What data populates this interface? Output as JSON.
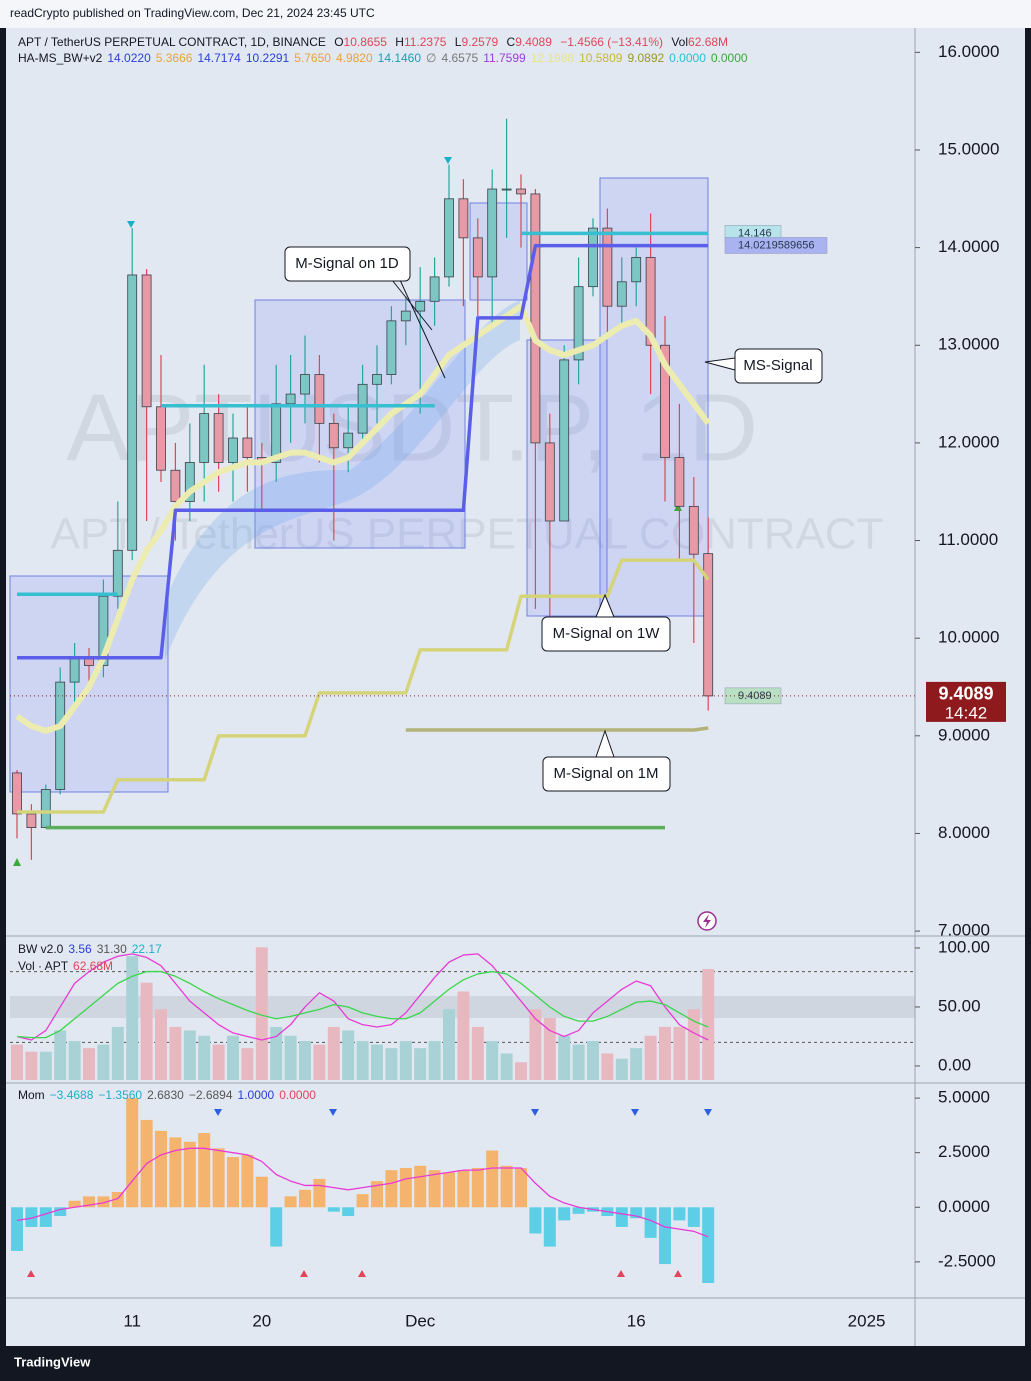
{
  "header": {
    "title": "readCrypto published on TradingView.com, Dec 21, 2024 23:45 UTC"
  },
  "footer": {
    "brand": "TradingView"
  },
  "watermark": {
    "symbol": "APTUSDT.P, 1D",
    "name": "APT / TetherUS PERPETUAL CONTRACT"
  },
  "chart_data": [
    {
      "type": "candlestick",
      "categories": [
        null,
        null,
        null,
        null,
        null,
        null,
        null,
        null,
        "11",
        null,
        null,
        null,
        null,
        null,
        null,
        null,
        null,
        "20",
        null,
        null,
        null,
        null,
        null,
        null,
        null,
        null,
        null,
        null,
        "Dec",
        null,
        null,
        null,
        null,
        null,
        null,
        null,
        null,
        null,
        null,
        null,
        null,
        null,
        null,
        "16",
        null,
        null,
        null,
        null,
        null
      ],
      "next_year_label": "2025",
      "open": [
        8.62,
        8.2,
        8.06,
        8.45,
        9.55,
        9.8,
        9.72,
        10.43,
        10.9,
        13.72,
        12.37,
        11.72,
        11.4,
        11.8,
        12.3,
        11.8,
        12.05,
        11.85,
        11.8,
        12.4,
        12.5,
        12.7,
        12.2,
        11.95,
        12.1,
        12.6,
        12.7,
        13.25,
        13.35,
        13.45,
        13.7,
        14.5,
        14.1,
        13.7,
        14.6,
        14.6,
        14.55,
        12.0,
        11.2,
        12.85,
        13.6,
        14.2,
        13.4,
        13.65,
        13.9,
        13.0,
        11.85,
        11.35,
        10.8655
      ],
      "high": [
        8.65,
        8.3,
        8.5,
        9.7,
        9.95,
        9.9,
        10.6,
        11.4,
        14.2,
        13.78,
        12.9,
        12.0,
        12.2,
        12.8,
        12.5,
        12.3,
        12.4,
        12.0,
        12.8,
        12.9,
        13.1,
        12.9,
        12.3,
        12.4,
        12.8,
        13.0,
        13.4,
        13.5,
        13.8,
        13.9,
        14.85,
        14.7,
        14.3,
        14.8,
        15.32,
        14.75,
        14.6,
        12.3,
        13.0,
        13.9,
        14.3,
        14.4,
        13.9,
        14.0,
        14.35,
        13.3,
        12.4,
        11.65,
        11.2375
      ],
      "low": [
        7.95,
        7.73,
        8.05,
        8.4,
        9.3,
        9.5,
        9.6,
        10.3,
        10.8,
        11.2,
        11.6,
        11.0,
        11.2,
        11.4,
        11.5,
        11.4,
        11.5,
        11.3,
        11.6,
        12.0,
        12.2,
        11.8,
        11.0,
        11.7,
        12.0,
        12.2,
        12.6,
        13.0,
        12.3,
        13.2,
        13.6,
        13.4,
        13.3,
        13.2,
        14.1,
        14.0,
        10.3,
        10.1,
        11.2,
        12.6,
        13.5,
        13.1,
        13.2,
        13.4,
        12.5,
        11.4,
        10.8,
        9.95,
        9.2579
      ],
      "close": [
        8.2,
        8.06,
        8.45,
        9.55,
        9.8,
        9.72,
        10.43,
        10.9,
        13.72,
        12.37,
        11.72,
        11.4,
        11.8,
        12.3,
        11.8,
        12.05,
        11.85,
        11.8,
        12.4,
        12.5,
        12.7,
        12.2,
        11.95,
        12.1,
        12.6,
        12.7,
        13.25,
        13.35,
        13.45,
        13.7,
        14.5,
        14.1,
        13.7,
        14.6,
        14.6,
        14.55,
        12.0,
        11.2,
        12.85,
        13.6,
        14.2,
        13.4,
        13.65,
        13.9,
        13.0,
        11.85,
        11.35,
        10.86,
        9.4089
      ],
      "up_color": "#7cc6c4",
      "down_color": "#e79aa5",
      "up_wick": "#26a69a",
      "down_wick": "#e0455a",
      "series": [
        {
          "name": "MS-Signal",
          "color": "#ecebb0",
          "values": [
            9.2,
            9.1,
            9.05,
            9.1,
            9.3,
            9.5,
            9.8,
            10.2,
            10.6,
            10.9,
            11.1,
            11.35,
            11.5,
            11.6,
            11.7,
            11.75,
            11.8,
            11.8,
            11.85,
            11.9,
            11.9,
            11.85,
            11.8,
            11.85,
            12.0,
            12.15,
            12.3,
            12.4,
            12.5,
            12.7,
            12.9,
            13.0,
            13.1,
            13.2,
            13.3,
            13.4,
            13.05,
            12.95,
            12.9,
            12.95,
            13.0,
            13.1,
            13.2,
            13.25,
            13.1,
            12.8,
            12.6,
            12.4,
            12.2
          ]
        },
        {
          "name": "M-Signal on 1D",
          "color": "#5b5ee8",
          "values": [
            9.8,
            9.8,
            9.8,
            9.8,
            9.8,
            9.8,
            9.8,
            9.8,
            9.8,
            9.8,
            9.8,
            11.31,
            11.31,
            11.31,
            11.31,
            11.31,
            11.31,
            11.31,
            11.31,
            11.31,
            11.31,
            11.31,
            11.31,
            11.31,
            11.31,
            11.31,
            11.31,
            11.31,
            11.31,
            11.31,
            11.31,
            11.31,
            13.28,
            13.28,
            13.28,
            13.28,
            14.02,
            14.02,
            14.02,
            14.02,
            14.02,
            14.02,
            14.02,
            14.02,
            14.02,
            14.02,
            14.02,
            14.02,
            14.02
          ]
        },
        {
          "name": "M-Signal on 1W",
          "color": "#d6d47a",
          "values": [
            8.22,
            8.22,
            8.22,
            8.22,
            8.22,
            8.22,
            8.22,
            8.55,
            8.55,
            8.55,
            8.55,
            8.55,
            8.55,
            8.55,
            9.0,
            9.0,
            9.0,
            9.0,
            9.0,
            9.0,
            9.0,
            9.44,
            9.44,
            9.44,
            9.44,
            9.44,
            9.44,
            9.44,
            9.88,
            9.88,
            9.88,
            9.88,
            9.88,
            9.88,
            9.88,
            10.43,
            10.43,
            10.43,
            10.43,
            10.43,
            10.43,
            10.43,
            10.8,
            10.8,
            10.8,
            10.8,
            10.8,
            10.8,
            10.6
          ]
        },
        {
          "name": "M-Signal on 1M",
          "color": "#b2b27a",
          "values": [
            null,
            null,
            null,
            null,
            null,
            null,
            null,
            null,
            null,
            null,
            null,
            null,
            null,
            null,
            null,
            null,
            null,
            null,
            null,
            null,
            null,
            null,
            null,
            null,
            null,
            null,
            null,
            9.06,
            9.06,
            9.06,
            9.06,
            9.06,
            9.06,
            9.06,
            9.06,
            9.06,
            9.06,
            9.06,
            9.06,
            9.06,
            9.06,
            9.06,
            9.06,
            9.06,
            9.06,
            9.06,
            9.06,
            9.06,
            9.08
          ]
        },
        {
          "color": "#5cae5c",
          "values": [
            null,
            null,
            8.06,
            8.06,
            8.06,
            8.06,
            8.06,
            8.06,
            8.06,
            8.06,
            8.06,
            8.06,
            8.06,
            8.06,
            8.06,
            8.06,
            8.06,
            8.06,
            8.06,
            8.06,
            8.06,
            8.06,
            8.06,
            8.06,
            8.06,
            8.06,
            8.06,
            8.06,
            8.06,
            8.06,
            8.06,
            8.06,
            8.06,
            8.06,
            8.06,
            8.06,
            8.06,
            8.06,
            8.06,
            8.06,
            8.06,
            8.06,
            8.06,
            8.06,
            8.06,
            8.06,
            null,
            null,
            null
          ]
        },
        {
          "color": "#35bfd0",
          "values": [
            10.45,
            10.45,
            10.45,
            10.45,
            10.45,
            10.45,
            10.45,
            10.45,
            null,
            null,
            12.38,
            12.38,
            12.38,
            12.38,
            12.38,
            12.38,
            12.38,
            12.38,
            12.38,
            12.38,
            12.38,
            12.38,
            12.38,
            12.38,
            12.38,
            12.38,
            12.38,
            12.38,
            12.38,
            12.38,
            null,
            null,
            null,
            null,
            null,
            14.146,
            14.146,
            14.146,
            14.146,
            14.146,
            14.146,
            14.146,
            14.146,
            14.146,
            14.146,
            14.146,
            14.146,
            14.146,
            14.146
          ]
        }
      ],
      "level_labels": [
        14.146,
        14.0219589656,
        9.4089
      ],
      "level_colors": [
        "#b7e3ea",
        "#a9b3f2",
        "#b9e0c2"
      ],
      "countdown": "14:42",
      "last_color": "#8e1a1d",
      "ylim": [
        6.96,
        16.28
      ],
      "yticks": [
        {
          "value": 7,
          "label": "7.0000"
        },
        {
          "value": 8,
          "label": "8.0000"
        },
        {
          "value": 9,
          "label": "9.0000"
        },
        {
          "value": 10,
          "label": "10.0000"
        },
        {
          "value": 11,
          "label": "11.0000"
        },
        {
          "value": 12,
          "label": "12.0000"
        },
        {
          "value": 13,
          "label": "13.0000"
        },
        {
          "value": 14,
          "label": "14.0000"
        },
        {
          "value": 15,
          "label": "15.0000"
        },
        {
          "value": 16,
          "label": "16.0000"
        }
      ],
      "legend": {
        "symbol": "APT / TetherUS PERPETUAL CONTRACT, 1D, BINANCE",
        "o": "O",
        "h": "H",
        "l": "L",
        "c": "C",
        "change": "−1.4566 (−13.41%)",
        "vol": "Vol",
        "vol_value": "62.68M",
        "value_color": "#e0455a",
        "indicator": "HA-MS_BW+v2",
        "values": [
          "14.0220",
          "5.3666",
          "14.7174",
          "10.2291",
          "5.7650",
          "4.9820",
          "14.1460",
          "∅",
          "4.6575",
          "11.7599",
          "12.1988",
          "10.5809",
          "9.0892",
          "0.0000",
          "0.0000"
        ],
        "colors": [
          "#2a3fd6",
          "#e8a23a",
          "#2a3fd6",
          "#2a3fd6",
          "#e8a23a",
          "#e8a23a",
          "#1a9fb0",
          "#777777",
          "#777777",
          "#9b3fd6",
          "#e8e48a",
          "#c8b830",
          "#9a9a20",
          "#22c2d6",
          "#3aa83a"
        ]
      }
    },
    {
      "type": "line",
      "ylim": [
        -11.9,
        109.3
      ],
      "yticks": [
        {
          "value": 0,
          "label": "0.00"
        },
        {
          "value": 50,
          "label": "50.00"
        },
        {
          "value": 100,
          "label": "100.00"
        }
      ],
      "levels": [
        80,
        20
      ],
      "y2lim": [
        0,
        80.8
      ],
      "series": [
        {
          "axis": "y2",
          "type": "bar",
          "up_color": "#a9d2d6",
          "down_color": "#e8b8c0",
          "values": [
            20,
            16,
            16,
            28,
            22,
            18,
            20,
            30,
            70,
            55,
            40,
            30,
            28,
            25,
            20,
            25,
            18,
            75,
            30,
            25,
            22,
            20,
            30,
            28,
            22,
            20,
            18,
            22,
            18,
            22,
            40,
            50,
            30,
            22,
            15,
            10,
            40,
            35,
            25,
            20,
            22,
            15,
            12,
            18,
            25,
            30,
            30,
            40,
            62.68
          ]
        },
        {
          "color": "#e83ad6",
          "values": [
            25,
            22,
            30,
            50,
            70,
            80,
            88,
            93,
            95,
            92,
            85,
            70,
            55,
            45,
            35,
            28,
            25,
            22,
            25,
            35,
            50,
            62,
            55,
            40,
            35,
            33,
            35,
            45,
            60,
            75,
            88,
            94,
            95,
            85,
            70,
            55,
            40,
            30,
            25,
            30,
            45,
            55,
            65,
            72,
            68,
            50,
            35,
            28,
            22
          ]
        },
        {
          "color": "#3ad64a",
          "values": [
            25,
            24,
            24,
            30,
            40,
            50,
            60,
            70,
            76,
            80,
            80,
            76,
            70,
            63,
            57,
            52,
            47,
            43,
            40,
            42,
            45,
            48,
            52,
            50,
            45,
            42,
            40,
            40,
            45,
            55,
            65,
            73,
            78,
            80,
            78,
            70,
            60,
            50,
            42,
            38,
            38,
            42,
            48,
            54,
            55,
            52,
            45,
            38,
            33
          ]
        }
      ],
      "legend": {
        "name": "BW v2.0",
        "values": [
          "3.56",
          "31.30",
          "22.17"
        ],
        "colors": [
          "#2a3fd6",
          "#555555",
          "#1ab0c8"
        ],
        "vol": "Vol · APT",
        "vol_value": "62.68M",
        "vol_color": "#e0455a"
      }
    },
    {
      "type": "bar",
      "ylim": [
        -3.88,
        5.6
      ],
      "yticks": [
        {
          "value": -2.5,
          "label": "-2.5000"
        },
        {
          "value": 0,
          "label": "0.0000"
        },
        {
          "value": 2.5,
          "label": "2.5000"
        },
        {
          "value": 5,
          "label": "5.0000"
        }
      ],
      "series": [
        {
          "type": "bar",
          "pos_color": "#f5b46e",
          "neg_color": "#5ccfe6",
          "values": [
            -2.0,
            -0.9,
            -0.9,
            -0.4,
            0.3,
            0.5,
            0.5,
            0.7,
            5.0,
            4.0,
            3.5,
            3.2,
            3.0,
            3.4,
            2.7,
            2.3,
            2.4,
            1.4,
            -1.8,
            0.5,
            0.8,
            1.3,
            -0.2,
            -0.4,
            0.6,
            1.2,
            1.7,
            1.8,
            1.9,
            1.7,
            1.6,
            1.7,
            1.8,
            2.6,
            1.9,
            1.8,
            -1.2,
            -1.8,
            -0.6,
            -0.3,
            -0.2,
            -0.4,
            -0.9,
            -0.5,
            -1.4,
            -2.6,
            -0.6,
            -0.9,
            -3.4688
          ]
        },
        {
          "color": "#e83ad6",
          "values": [
            -0.6,
            -0.5,
            -0.3,
            -0.1,
            0.0,
            0.1,
            0.2,
            0.4,
            1.2,
            2.0,
            2.4,
            2.6,
            2.7,
            2.7,
            2.6,
            2.5,
            2.4,
            2.1,
            1.5,
            1.2,
            1.0,
            1.0,
            0.9,
            0.8,
            0.9,
            1.0,
            1.1,
            1.3,
            1.4,
            1.5,
            1.6,
            1.7,
            1.7,
            1.8,
            1.8,
            1.8,
            1.1,
            0.5,
            0.2,
            0.0,
            -0.1,
            -0.2,
            -0.3,
            -0.4,
            -0.6,
            -0.9,
            -1.0,
            -1.1,
            -1.356
          ]
        }
      ],
      "legend": {
        "name": "Mom",
        "values": [
          "−3.4688",
          "−1.3560",
          "2.6830",
          "−2.6894",
          "1.0000",
          "0.0000"
        ],
        "colors": [
          "#1ab0c8",
          "#1ab0c8",
          "#555555",
          "#555555",
          "#2a3fd6",
          "#e0455a"
        ]
      }
    }
  ]
}
